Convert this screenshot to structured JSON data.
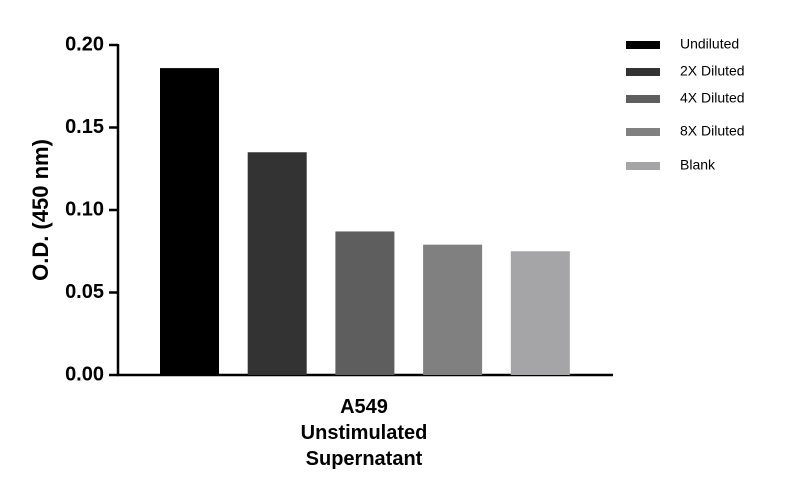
{
  "chart_data": {
    "type": "bar",
    "y_label": "O.D. (450 nm)",
    "categories": [
      "A549\nUnstimulated\nSupernatant"
    ],
    "series": [
      {
        "name": "Undiluted",
        "color": "#000000",
        "values": [
          0.186
        ]
      },
      {
        "name": "2X Diluted",
        "color": "#333333",
        "values": [
          0.135
        ]
      },
      {
        "name": "4X Diluted",
        "color": "#5e5e5e",
        "values": [
          0.087
        ]
      },
      {
        "name": "8X Diluted",
        "color": "#808080",
        "values": [
          0.079
        ]
      },
      {
        "name": "Blank",
        "color": "#a5a5a7",
        "values": [
          0.075
        ]
      }
    ],
    "ylim": [
      0,
      0.2
    ],
    "yticks": [
      {
        "value": 0,
        "label": "0.00"
      },
      0.05,
      {
        "value": 0.1,
        "label": "0.10"
      },
      0.15,
      {
        "value": 0.2,
        "label": "0.20"
      }
    ],
    "legend": "right"
  }
}
